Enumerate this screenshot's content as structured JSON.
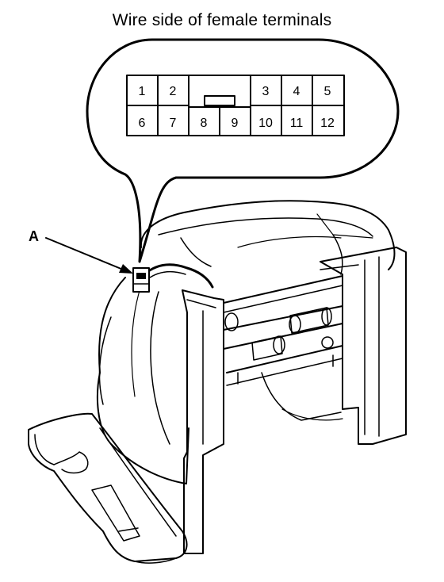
{
  "title": "Wire side of female terminals",
  "callout_label": "A",
  "connector": {
    "top_row": [
      "1",
      "2",
      "3",
      "4",
      "5"
    ],
    "bottom_row": [
      "6",
      "7",
      "8",
      "9",
      "10",
      "11",
      "12"
    ]
  }
}
